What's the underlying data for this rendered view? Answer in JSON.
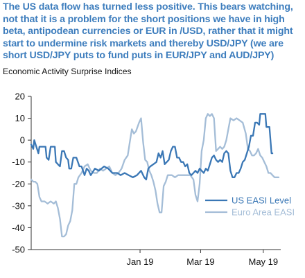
{
  "headline": "The US data flow has turned less positive. This bears watching, not that it is a problem for the short positions we have in high beta, antipodean currencies or EUR in /USD, rather that it might start to undermine risk markets and thereby USD/JPY (we are short USD/JPY puts to fund puts in EUR/JPY and AUD/JPY)",
  "chart_data": {
    "type": "line",
    "title": "Economic Activity Surprise Indices",
    "xlabel": "",
    "ylabel": "",
    "ylim": [
      -50,
      20
    ],
    "y_ticks": [
      "20",
      "10",
      "0",
      "-10",
      "-20",
      "-30",
      "-40",
      "-50"
    ],
    "x_range": [
      "2018-09-17",
      "2019-05-18"
    ],
    "x_ticks": [
      {
        "date": "2019-01-01",
        "label": "Jan 19"
      },
      {
        "date": "2019-03-01",
        "label": "Mar 19"
      },
      {
        "date": "2019-05-01",
        "label": "May 19"
      }
    ],
    "grid": false,
    "legend_position": "bottom-right",
    "series": [
      {
        "name": "US EASI Level",
        "color": "#3a77b5",
        "points": [
          [
            "2018-09-17",
            -2
          ],
          [
            "2018-09-19",
            -4
          ],
          [
            "2018-09-20",
            0
          ],
          [
            "2018-09-22",
            -3
          ],
          [
            "2018-09-24",
            -6
          ],
          [
            "2018-09-25",
            -3
          ],
          [
            "2018-09-28",
            -3
          ],
          [
            "2018-10-01",
            -3
          ],
          [
            "2018-10-02",
            -8
          ],
          [
            "2018-10-04",
            -9
          ],
          [
            "2018-10-06",
            -3
          ],
          [
            "2018-10-07",
            -3
          ],
          [
            "2018-10-10",
            -3
          ],
          [
            "2018-10-11",
            -10
          ],
          [
            "2018-10-13",
            -11
          ],
          [
            "2018-10-15",
            -12
          ],
          [
            "2018-10-17",
            -5
          ],
          [
            "2018-10-19",
            -5
          ],
          [
            "2018-10-21",
            -8
          ],
          [
            "2018-10-23",
            -9
          ],
          [
            "2018-10-24",
            -13
          ],
          [
            "2018-10-26",
            -13
          ],
          [
            "2018-10-28",
            -8
          ],
          [
            "2018-10-31",
            -8
          ],
          [
            "2018-11-03",
            -12
          ],
          [
            "2018-11-05",
            -12
          ],
          [
            "2018-11-08",
            -16
          ],
          [
            "2018-11-10",
            -13
          ],
          [
            "2018-11-12",
            -14
          ],
          [
            "2018-11-14",
            -16
          ],
          [
            "2018-11-18",
            -13
          ],
          [
            "2018-11-22",
            -14
          ],
          [
            "2018-11-27",
            -12
          ],
          [
            "2018-12-01",
            -13
          ],
          [
            "2018-12-05",
            -15
          ],
          [
            "2018-12-10",
            -15
          ],
          [
            "2018-12-13",
            -16
          ],
          [
            "2018-12-17",
            -15
          ],
          [
            "2018-12-21",
            -16
          ],
          [
            "2018-12-25",
            -17
          ],
          [
            "2018-12-29",
            -16
          ],
          [
            "2019-01-02",
            -14
          ],
          [
            "2019-01-05",
            -17
          ],
          [
            "2019-01-07",
            -18
          ],
          [
            "2019-01-09",
            -13
          ],
          [
            "2019-01-11",
            -12
          ],
          [
            "2019-01-14",
            -11
          ],
          [
            "2019-01-17",
            -10
          ],
          [
            "2019-01-19",
            -6
          ],
          [
            "2019-01-21",
            -8
          ],
          [
            "2019-01-23",
            -5
          ],
          [
            "2019-01-25",
            -11
          ],
          [
            "2019-01-27",
            -10
          ],
          [
            "2019-01-29",
            -9
          ],
          [
            "2019-01-31",
            -5
          ],
          [
            "2019-02-02",
            -3
          ],
          [
            "2019-02-04",
            -3
          ],
          [
            "2019-02-06",
            -8
          ],
          [
            "2019-02-08",
            -8
          ],
          [
            "2019-02-10",
            -10
          ],
          [
            "2019-02-12",
            -10
          ],
          [
            "2019-02-14",
            -12
          ],
          [
            "2019-02-16",
            -11
          ],
          [
            "2019-02-18",
            -15
          ],
          [
            "2019-02-20",
            -16
          ],
          [
            "2019-02-22",
            -15
          ],
          [
            "2019-02-24",
            -14
          ],
          [
            "2019-02-26",
            -15
          ],
          [
            "2019-02-28",
            -13
          ],
          [
            "2019-03-02",
            -14
          ],
          [
            "2019-03-04",
            -15
          ],
          [
            "2019-03-06",
            -13
          ],
          [
            "2019-03-08",
            -14
          ],
          [
            "2019-03-10",
            -11
          ],
          [
            "2019-03-12",
            -8
          ],
          [
            "2019-03-14",
            -7
          ],
          [
            "2019-03-16",
            -9
          ],
          [
            "2019-03-18",
            -10
          ],
          [
            "2019-03-20",
            -9
          ],
          [
            "2019-03-22",
            -10
          ],
          [
            "2019-03-24",
            -6
          ],
          [
            "2019-03-26",
            -5
          ],
          [
            "2019-03-28",
            -6
          ],
          [
            "2019-03-30",
            -14
          ],
          [
            "2019-04-01",
            -17
          ],
          [
            "2019-04-03",
            -17
          ],
          [
            "2019-04-05",
            -15
          ],
          [
            "2019-04-07",
            -15
          ],
          [
            "2019-04-09",
            -13
          ],
          [
            "2019-04-11",
            -10
          ],
          [
            "2019-04-13",
            -9
          ],
          [
            "2019-04-15",
            -6
          ],
          [
            "2019-04-17",
            -3
          ],
          [
            "2019-04-19",
            2
          ],
          [
            "2019-04-21",
            2
          ],
          [
            "2019-04-23",
            8
          ],
          [
            "2019-04-25",
            8
          ],
          [
            "2019-04-27",
            7
          ],
          [
            "2019-04-28",
            12
          ],
          [
            "2019-04-30",
            12
          ],
          [
            "2019-05-02",
            12
          ],
          [
            "2019-05-03",
            12
          ],
          [
            "2019-05-04",
            6
          ],
          [
            "2019-05-06",
            6
          ],
          [
            "2019-05-07",
            6
          ],
          [
            "2019-05-09",
            -6
          ],
          [
            "2019-05-10",
            -6
          ]
        ]
      },
      {
        "name": "Euro Area EASI",
        "color": "#a4bdd7",
        "points": [
          [
            "2018-09-17",
            -18
          ],
          [
            "2018-09-19",
            -19
          ],
          [
            "2018-09-21",
            -19
          ],
          [
            "2018-09-23",
            -20
          ],
          [
            "2018-09-25",
            -26
          ],
          [
            "2018-09-27",
            -28
          ],
          [
            "2018-09-30",
            -28
          ],
          [
            "2018-10-03",
            -29
          ],
          [
            "2018-10-06",
            -28
          ],
          [
            "2018-10-09",
            -29
          ],
          [
            "2018-10-11",
            -28
          ],
          [
            "2018-10-13",
            -31
          ],
          [
            "2018-10-15",
            -36
          ],
          [
            "2018-10-17",
            -44
          ],
          [
            "2018-10-19",
            -44
          ],
          [
            "2018-10-21",
            -43
          ],
          [
            "2018-10-23",
            -39
          ],
          [
            "2018-10-25",
            -37
          ],
          [
            "2018-10-27",
            -32
          ],
          [
            "2018-10-29",
            -20
          ],
          [
            "2018-10-31",
            -20
          ],
          [
            "2018-11-02",
            -17
          ],
          [
            "2018-11-05",
            -15
          ],
          [
            "2018-11-08",
            -12
          ],
          [
            "2018-11-11",
            -11
          ],
          [
            "2018-11-14",
            -14
          ],
          [
            "2018-11-17",
            -15
          ],
          [
            "2018-11-20",
            -15
          ],
          [
            "2018-11-23",
            -13
          ],
          [
            "2018-11-26",
            -14
          ],
          [
            "2018-11-29",
            -13
          ],
          [
            "2018-12-02",
            -12
          ],
          [
            "2018-12-05",
            -15
          ],
          [
            "2018-12-08",
            -16
          ],
          [
            "2018-12-11",
            -15
          ],
          [
            "2018-12-14",
            -13
          ],
          [
            "2018-12-17",
            -9
          ],
          [
            "2018-12-20",
            -7
          ],
          [
            "2018-12-22",
            -1
          ],
          [
            "2018-12-24",
            5
          ],
          [
            "2018-12-26",
            3
          ],
          [
            "2018-12-28",
            4
          ],
          [
            "2018-12-31",
            8
          ],
          [
            "2019-01-02",
            10
          ],
          [
            "2019-01-04",
            -1
          ],
          [
            "2019-01-06",
            -9
          ],
          [
            "2019-01-08",
            -10
          ],
          [
            "2019-01-10",
            -14
          ],
          [
            "2019-01-12",
            -16
          ],
          [
            "2019-01-14",
            -19
          ],
          [
            "2019-01-16",
            -23
          ],
          [
            "2019-01-18",
            -29
          ],
          [
            "2019-01-20",
            -33
          ],
          [
            "2019-01-22",
            -33
          ],
          [
            "2019-01-24",
            -21
          ],
          [
            "2019-01-26",
            -19
          ],
          [
            "2019-01-28",
            -16
          ],
          [
            "2019-01-30",
            -16
          ],
          [
            "2019-02-01",
            -16
          ],
          [
            "2019-02-04",
            -17
          ],
          [
            "2019-02-07",
            -16
          ],
          [
            "2019-02-10",
            -16
          ],
          [
            "2019-02-13",
            -16
          ],
          [
            "2019-02-16",
            -16
          ],
          [
            "2019-02-19",
            -16
          ],
          [
            "2019-02-22",
            -18
          ],
          [
            "2019-02-24",
            -25
          ],
          [
            "2019-02-26",
            -28
          ],
          [
            "2019-02-28",
            -20
          ],
          [
            "2019-03-02",
            -5
          ],
          [
            "2019-03-04",
            0
          ],
          [
            "2019-03-06",
            10
          ],
          [
            "2019-03-08",
            12
          ],
          [
            "2019-03-10",
            11
          ],
          [
            "2019-03-12",
            12
          ],
          [
            "2019-03-14",
            10
          ],
          [
            "2019-03-16",
            -5
          ],
          [
            "2019-03-18",
            -4
          ],
          [
            "2019-03-20",
            -3
          ],
          [
            "2019-03-22",
            -4
          ],
          [
            "2019-03-24",
            -3
          ],
          [
            "2019-03-26",
            0
          ],
          [
            "2019-03-28",
            5
          ],
          [
            "2019-03-30",
            10
          ],
          [
            "2019-04-02",
            9
          ],
          [
            "2019-04-05",
            10
          ],
          [
            "2019-04-08",
            9
          ],
          [
            "2019-04-11",
            8
          ],
          [
            "2019-04-14",
            3
          ],
          [
            "2019-04-16",
            -4
          ],
          [
            "2019-04-18",
            -5
          ],
          [
            "2019-04-20",
            -7
          ],
          [
            "2019-04-22",
            -7
          ],
          [
            "2019-04-24",
            -6
          ],
          [
            "2019-04-26",
            -4
          ],
          [
            "2019-04-28",
            -7
          ],
          [
            "2019-04-30",
            -8
          ],
          [
            "2019-05-02",
            -10
          ],
          [
            "2019-05-04",
            -12
          ],
          [
            "2019-05-06",
            -15
          ],
          [
            "2019-05-08",
            -15
          ],
          [
            "2019-05-10",
            -16
          ],
          [
            "2019-05-12",
            -17
          ],
          [
            "2019-05-14",
            -17
          ],
          [
            "2019-05-16",
            -17
          ]
        ]
      }
    ]
  }
}
